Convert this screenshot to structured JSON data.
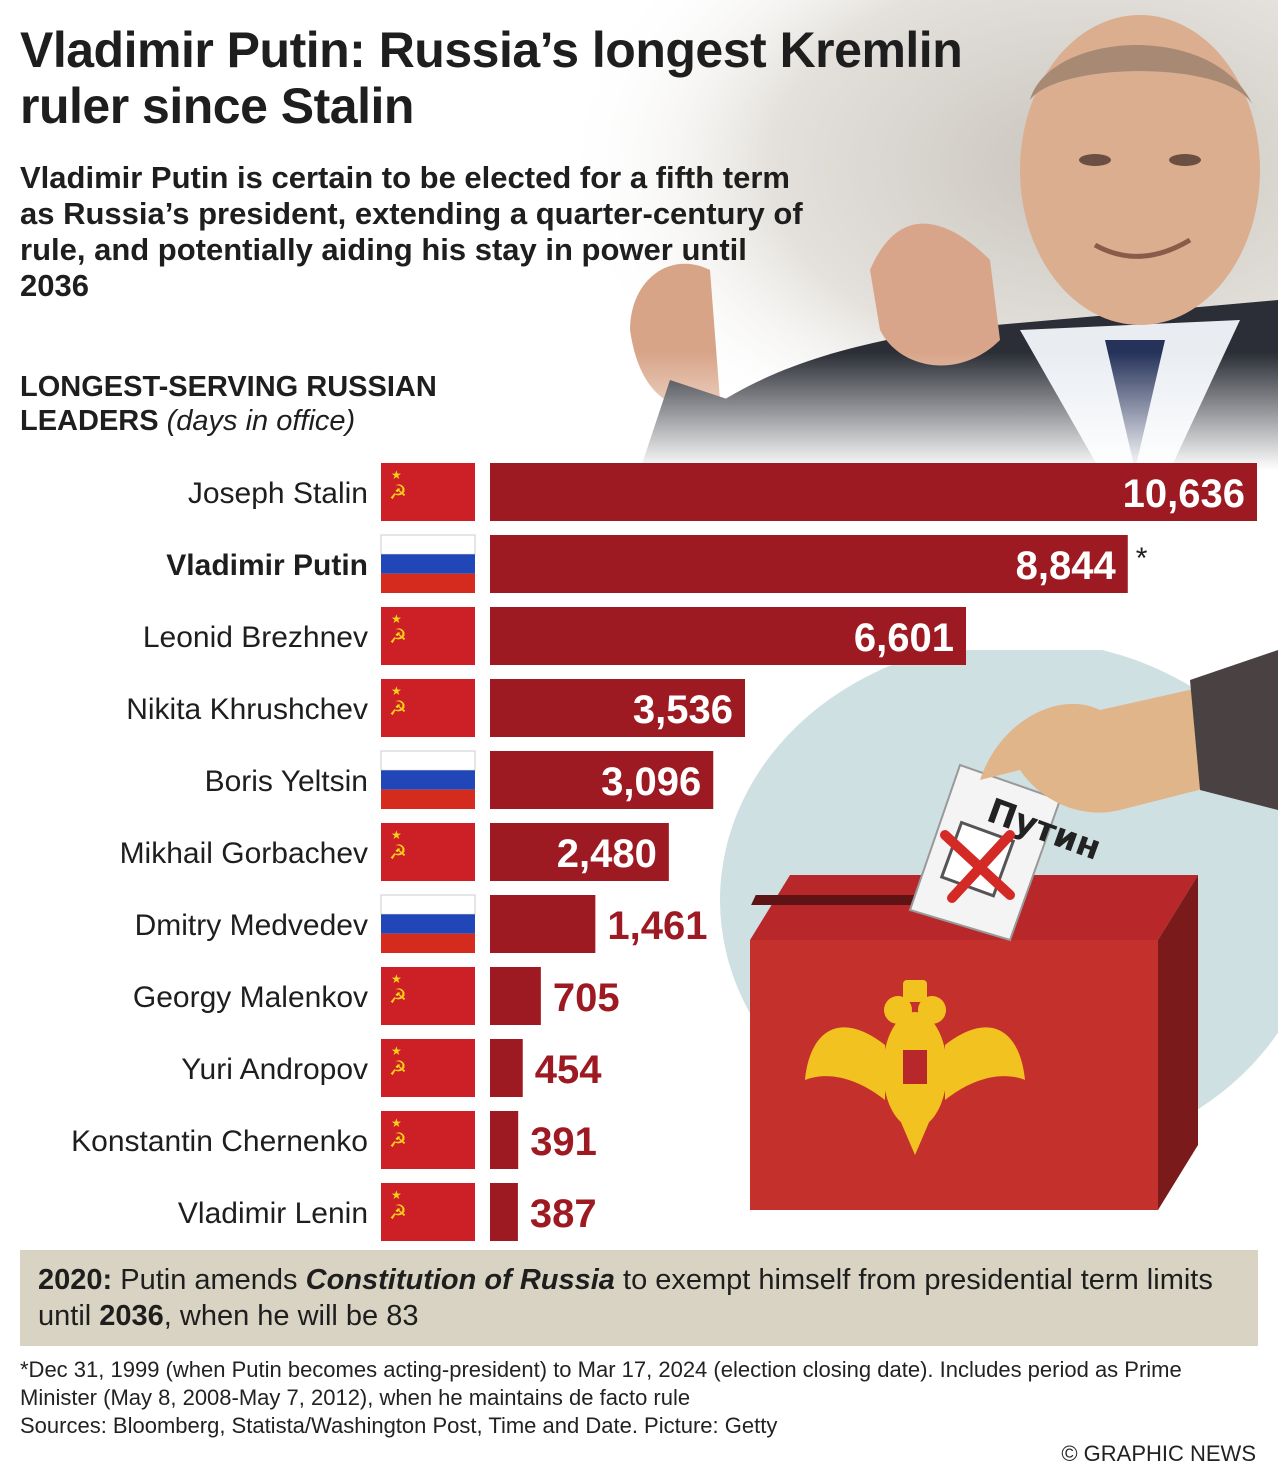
{
  "title": "Vladimir Putin: Russia’s longest Kremlin ruler since Stalin",
  "subtitle": "Vladimir Putin is certain to be elected for a fifth term as Russia’s president, extending a quarter-century of rule, and potentially aiding his stay in power until 2036",
  "section_title": "LONGEST-SERVING RUSSIAN LEADERS",
  "section_unit": "(days in office)",
  "chart_data": {
    "type": "bar",
    "orientation": "horizontal",
    "categories": [
      "Joseph Stalin",
      "Vladimir Putin",
      "Leonid Brezhnev",
      "Nikita Khrushchev",
      "Boris Yeltsin",
      "Mikhail Gorbachev",
      "Dmitry Medvedev",
      "Georgy Malenkov",
      "Yuri Andropov",
      "Konstantin Chernenko",
      "Vladimir Lenin"
    ],
    "values": [
      10636,
      8844,
      6601,
      3536,
      3096,
      2480,
      1461,
      705,
      454,
      391,
      387
    ],
    "value_labels": [
      "10,636",
      "8,844",
      "6,601",
      "3,536",
      "3,096",
      "2,480",
      "1,461",
      "705",
      "454",
      "391",
      "387"
    ],
    "flags": [
      "ussr",
      "russia",
      "ussr",
      "ussr",
      "russia",
      "ussr",
      "russia",
      "ussr",
      "ussr",
      "ussr",
      "ussr"
    ],
    "highlight": "Vladimir Putin",
    "asterisk_on": "Vladimir Putin",
    "asterisk": "*",
    "xlim": [
      0,
      10636
    ],
    "grid": false,
    "legend": "none",
    "bar_color": "#9e1a22",
    "flag_red": "#cc2026"
  },
  "note": {
    "year": "2020:",
    "text_1": " Putin amends ",
    "emphasis": "Constitution of Russia",
    "text_2": " to exempt himself from presidential term limits until ",
    "year_2036": "2036",
    "text_3": ", when he will be 83"
  },
  "footnote_1": "*Dec 31, 1999 (when Putin becomes acting-president) to Mar 17, 2024 (election closing date). Includes period as Prime Minister (May 8, 2008-May 7, 2012), when he maintains de facto rule",
  "sources": "Sources: Bloomberg, Statista/Washington Post, Time and Date. Picture: Getty",
  "copyright": "© GRAPHIC NEWS",
  "ballot_text": "Путин",
  "colors": {
    "note_bg": "#d9d3c3",
    "box_red": "#c4312c",
    "ballot_cross": "#d42a26",
    "emblem_gold": "#f2c320"
  }
}
